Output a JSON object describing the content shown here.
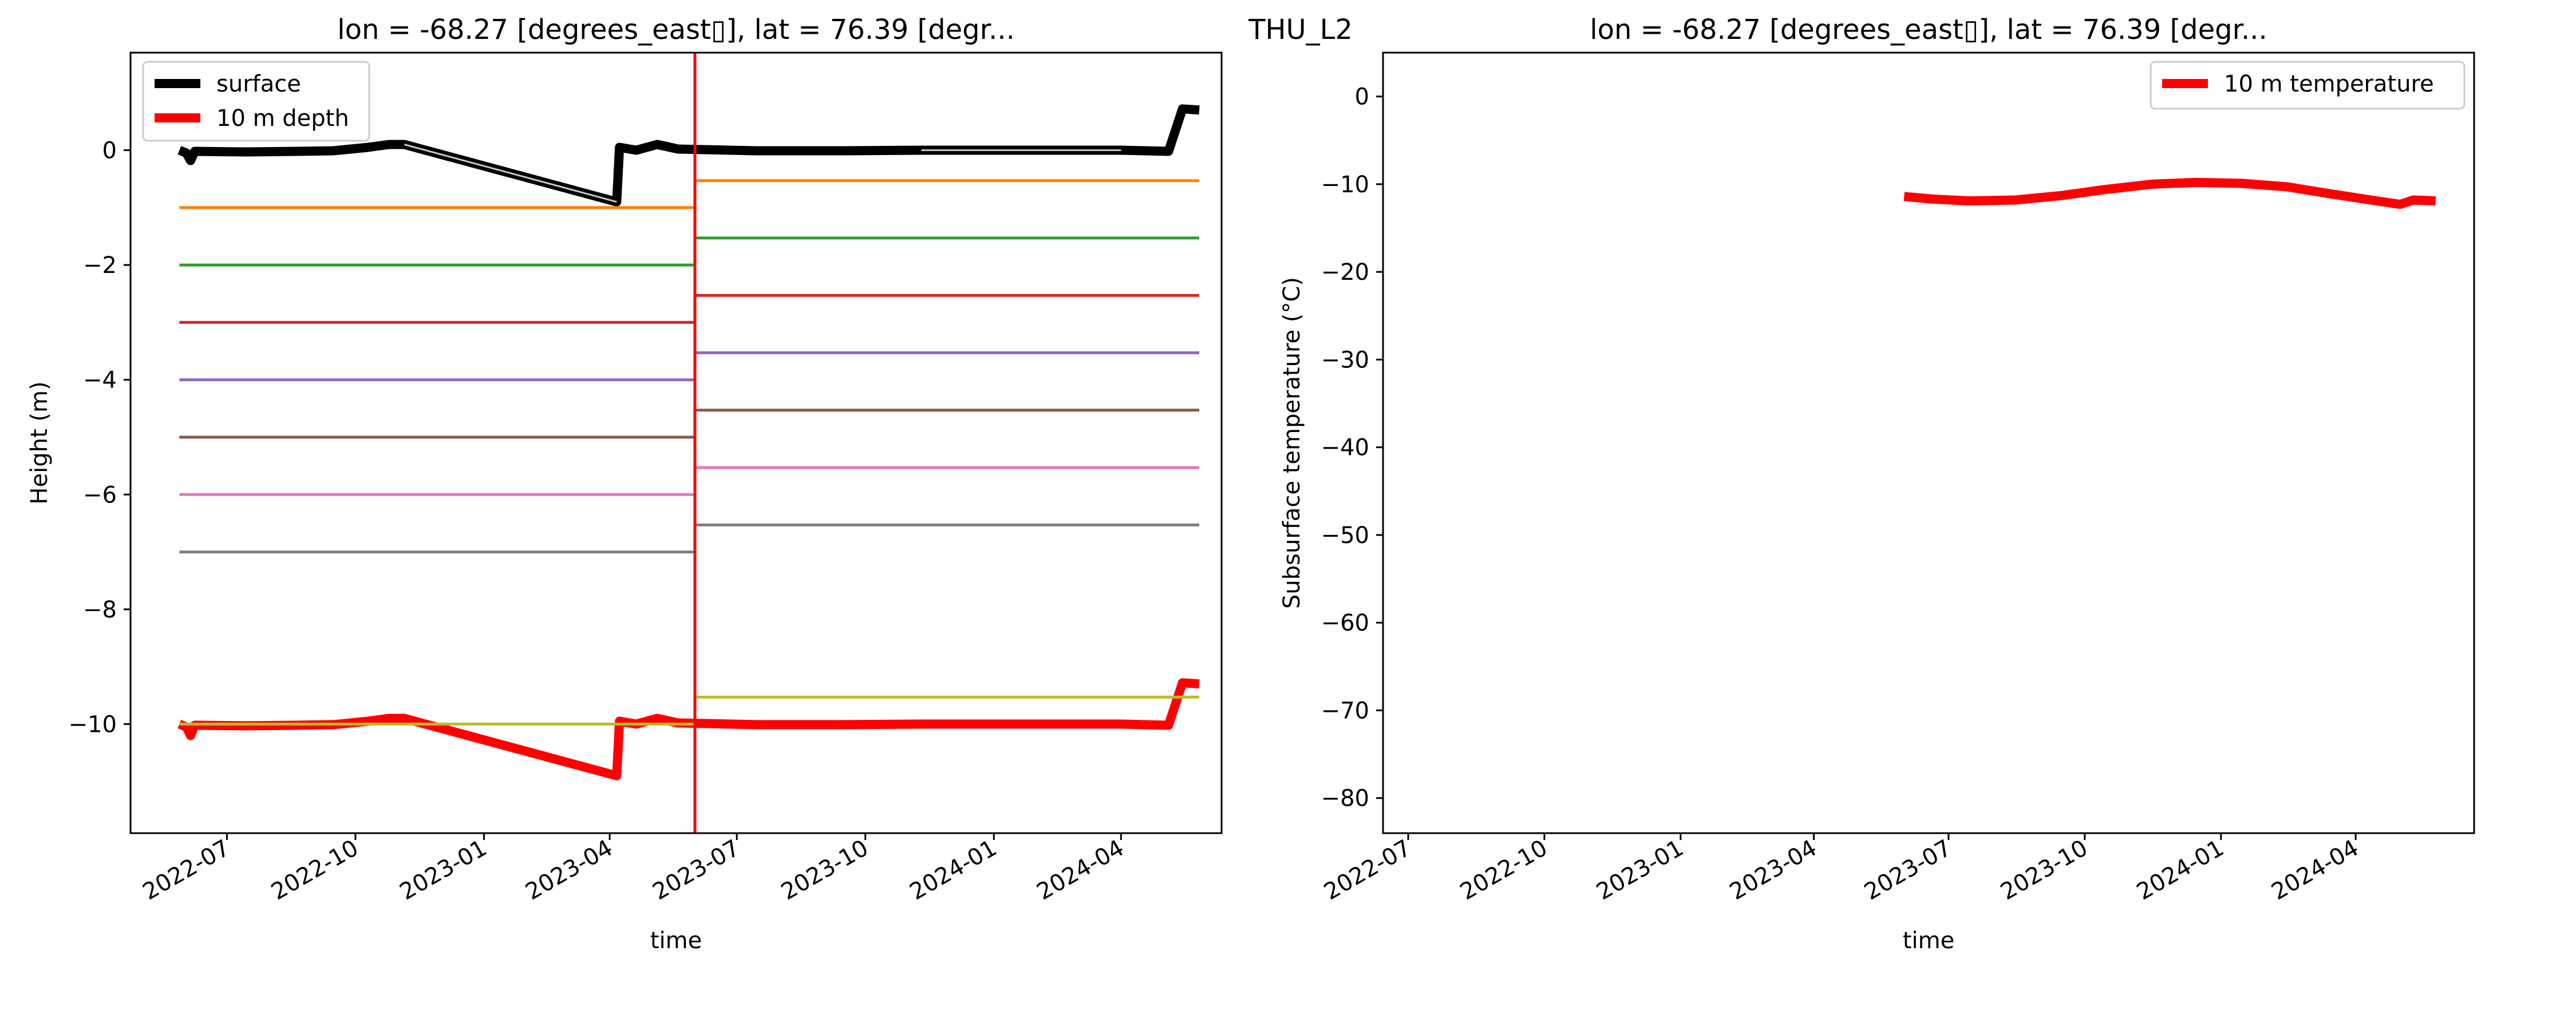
{
  "figure": {
    "suptitle": "THU_L2"
  },
  "chart_data": [
    {
      "type": "line",
      "title": "lon = -68.27 [degrees_east▯], lat = 76.39 [degr...",
      "xlabel": "time",
      "ylabel": "Height (m)",
      "x_ticks": [
        "2022-07",
        "2022-10",
        "2023-01",
        "2023-04",
        "2023-07",
        "2023-10",
        "2024-01",
        "2024-04"
      ],
      "y_ticks": [
        "−10",
        "−8",
        "−6",
        "−4",
        "−2",
        "0"
      ],
      "xlim": [
        "2022-04-23",
        "2024-06-12"
      ],
      "ylim": [
        -11.9,
        1.7
      ],
      "legend": {
        "location": "upper left",
        "entries": [
          {
            "label": "surface",
            "color": "#000000"
          },
          {
            "label": "10 m depth",
            "color": "#ff0000"
          }
        ]
      },
      "vertical_line": {
        "x": "2023-06-01",
        "color": "#ff0000"
      },
      "series": [
        {
          "name": "surface",
          "color": "#000000",
          "points": [
            [
              "2022-05-28",
              0.0
            ],
            [
              "2022-06-02",
              -0.05
            ],
            [
              "2022-06-05",
              -0.18
            ],
            [
              "2022-06-08",
              -0.02
            ],
            [
              "2022-07-15",
              -0.03
            ],
            [
              "2022-08-20",
              -0.02
            ],
            [
              "2022-09-15",
              -0.01
            ],
            [
              "2022-10-10",
              0.05
            ],
            [
              "2022-10-25",
              0.1
            ],
            [
              "2022-11-05",
              0.1
            ],
            [
              "2023-04-06",
              -0.9
            ],
            [
              "2023-04-08",
              0.05
            ],
            [
              "2023-04-20",
              0.0
            ],
            [
              "2023-05-05",
              0.1
            ],
            [
              "2023-05-20",
              0.02
            ],
            [
              "2023-07-15",
              -0.01
            ],
            [
              "2023-09-15",
              -0.01
            ],
            [
              "2023-11-10",
              0.0
            ],
            [
              "2024-04-01",
              0.0
            ],
            [
              "2024-05-05",
              -0.02
            ],
            [
              "2024-05-15",
              0.72
            ],
            [
              "2024-05-27",
              0.7
            ]
          ]
        },
        {
          "name": "10 m depth",
          "color": "#ff0000",
          "points": [
            [
              "2022-05-28",
              -10.0
            ],
            [
              "2022-06-02",
              -10.05
            ],
            [
              "2022-06-05",
              -10.2
            ],
            [
              "2022-06-08",
              -10.02
            ],
            [
              "2022-07-15",
              -10.03
            ],
            [
              "2022-08-20",
              -10.02
            ],
            [
              "2022-09-15",
              -10.01
            ],
            [
              "2022-10-10",
              -9.95
            ],
            [
              "2022-10-25",
              -9.9
            ],
            [
              "2022-11-05",
              -9.9
            ],
            [
              "2023-04-06",
              -10.9
            ],
            [
              "2023-04-08",
              -9.95
            ],
            [
              "2023-04-20",
              -10.0
            ],
            [
              "2023-05-05",
              -9.9
            ],
            [
              "2023-05-20",
              -9.98
            ],
            [
              "2023-07-15",
              -10.01
            ],
            [
              "2023-09-15",
              -10.01
            ],
            [
              "2023-11-10",
              -10.0
            ],
            [
              "2024-04-01",
              -10.0
            ],
            [
              "2024-05-05",
              -10.02
            ],
            [
              "2024-05-15",
              -9.28
            ],
            [
              "2024-05-27",
              -9.3
            ]
          ]
        },
        {
          "color": "#ff7f0e",
          "points": [
            [
              "2022-05-28",
              -1.0
            ],
            [
              "2023-06-01",
              -1.0
            ],
            [
              "2023-06-01",
              -0.53
            ],
            [
              "2024-05-27",
              -0.53
            ]
          ]
        },
        {
          "color": "#2ca02c",
          "points": [
            [
              "2022-05-28",
              -2.0
            ],
            [
              "2023-06-01",
              -2.0
            ],
            [
              "2023-06-01",
              -1.53
            ],
            [
              "2024-05-27",
              -1.53
            ]
          ]
        },
        {
          "color": "#d62728",
          "points": [
            [
              "2022-05-28",
              -3.0
            ],
            [
              "2023-06-01",
              -3.0
            ],
            [
              "2023-06-01",
              -2.53
            ],
            [
              "2024-05-27",
              -2.53
            ]
          ]
        },
        {
          "color": "#9467bd",
          "points": [
            [
              "2022-05-28",
              -4.0
            ],
            [
              "2023-06-01",
              -4.0
            ],
            [
              "2023-06-01",
              -3.53
            ],
            [
              "2024-05-27",
              -3.53
            ]
          ]
        },
        {
          "color": "#8c564b",
          "points": [
            [
              "2022-05-28",
              -5.0
            ],
            [
              "2023-06-01",
              -5.0
            ],
            [
              "2023-06-01",
              -4.53
            ],
            [
              "2024-05-27",
              -4.53
            ]
          ]
        },
        {
          "color": "#e377c2",
          "points": [
            [
              "2022-05-28",
              -6.0
            ],
            [
              "2023-06-01",
              -6.0
            ],
            [
              "2023-06-01",
              -5.53
            ],
            [
              "2024-05-27",
              -5.53
            ]
          ]
        },
        {
          "color": "#7f7f7f",
          "points": [
            [
              "2022-05-28",
              -7.0
            ],
            [
              "2023-06-01",
              -7.0
            ],
            [
              "2023-06-01",
              -6.53
            ],
            [
              "2024-05-27",
              -6.53
            ]
          ]
        },
        {
          "color": "#bcbd22",
          "points": [
            [
              "2022-05-28",
              -10.0
            ],
            [
              "2023-06-01",
              -10.0
            ],
            [
              "2023-06-01",
              -9.53
            ],
            [
              "2024-05-27",
              -9.53
            ]
          ]
        }
      ]
    },
    {
      "type": "line",
      "title": "lon = -68.27 [degrees_east▯], lat = 76.39 [degr...",
      "xlabel": "time",
      "ylabel": "Subsurface temperature (°C)",
      "x_ticks": [
        "2022-07",
        "2022-10",
        "2023-01",
        "2023-04",
        "2023-07",
        "2023-10",
        "2024-01",
        "2024-04"
      ],
      "y_ticks": [
        "−80",
        "−70",
        "−60",
        "−50",
        "−40",
        "−30",
        "−20",
        "−10",
        "0"
      ],
      "xlim": [
        "2022-06-14",
        "2024-06-20"
      ],
      "ylim": [
        -84,
        5
      ],
      "legend": {
        "location": "upper right",
        "entries": [
          {
            "label": "10 m temperature",
            "color": "#ff0000"
          }
        ]
      },
      "series": [
        {
          "name": "10 m temperature",
          "color": "#ff0000",
          "points": [
            [
              "2023-06-01",
              -11.4
            ],
            [
              "2023-06-20",
              -11.7
            ],
            [
              "2023-07-15",
              -11.9
            ],
            [
              "2023-08-15",
              -11.8
            ],
            [
              "2023-09-15",
              -11.3
            ],
            [
              "2023-10-15",
              -10.6
            ],
            [
              "2023-11-15",
              -10.0
            ],
            [
              "2023-12-15",
              -9.8
            ],
            [
              "2024-01-15",
              -9.9
            ],
            [
              "2024-02-15",
              -10.3
            ],
            [
              "2024-03-15",
              -11.1
            ],
            [
              "2024-04-15",
              -11.9
            ],
            [
              "2024-05-01",
              -12.3
            ],
            [
              "2024-05-10",
              -11.8
            ],
            [
              "2024-05-25",
              -11.9
            ]
          ]
        }
      ]
    }
  ]
}
